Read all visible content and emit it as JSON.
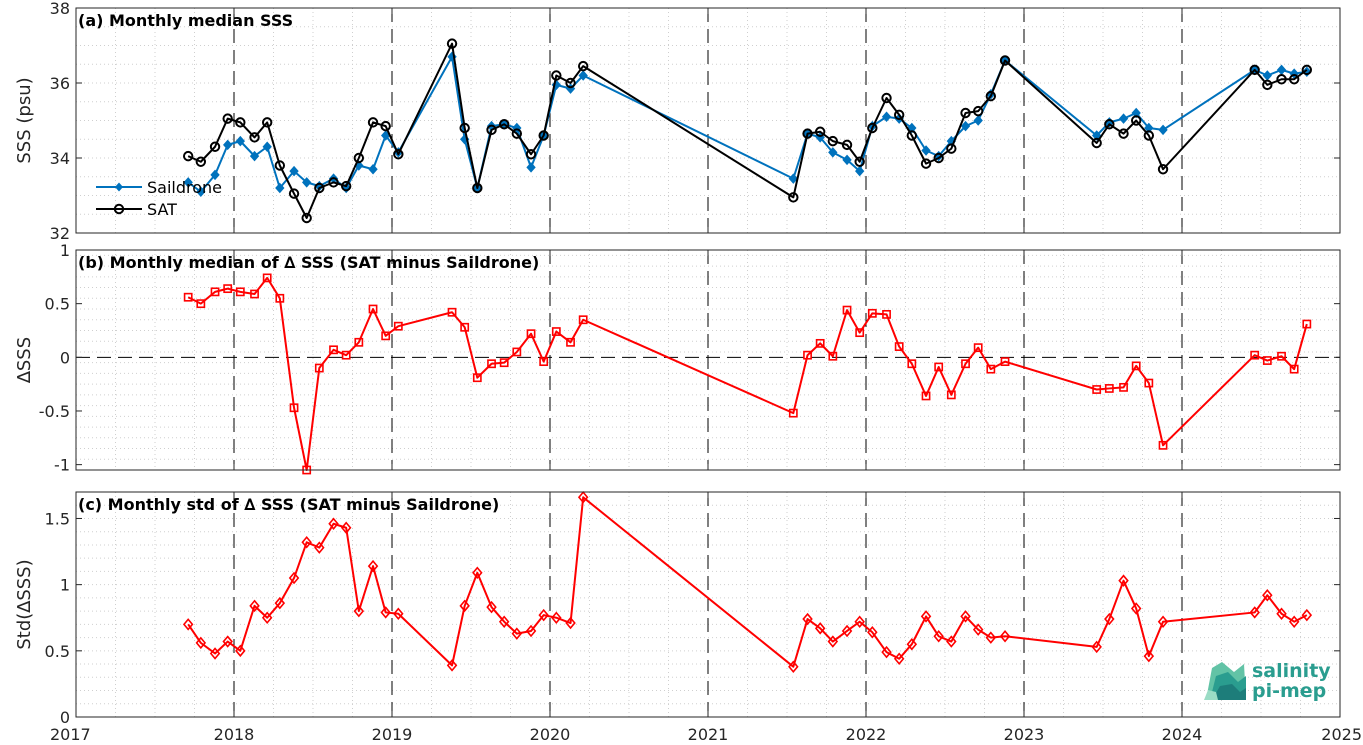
{
  "x_ticks": [
    "2017",
    "2018",
    "2019",
    "2020",
    "2021",
    "2022",
    "2023",
    "2024",
    "2025"
  ],
  "logo": {
    "line1": "salinity",
    "line2": "pi-mep",
    "color": "#2a9d8f"
  },
  "chart_data": [
    {
      "type": "line",
      "title": "(a) Monthly median SSS",
      "ylabel": "SSS (psu)",
      "xlim": [
        2017,
        2025
      ],
      "ylim": [
        32,
        38
      ],
      "yticks": [
        "32",
        "34",
        "36",
        "38"
      ],
      "grid": true,
      "legend": "left",
      "series": [
        {
          "name": "Saildrone",
          "color": "#0072BD",
          "marker": "diamond",
          "points": [
            [
              2017.71,
              33.35
            ],
            [
              2017.79,
              33.1
            ],
            [
              2017.88,
              33.55
            ],
            [
              2017.96,
              34.35
            ],
            [
              2018.04,
              34.45
            ],
            [
              2018.13,
              34.05
            ],
            [
              2018.21,
              34.3
            ],
            [
              2018.29,
              33.2
            ],
            [
              2018.38,
              33.65
            ],
            [
              2018.46,
              33.35
            ],
            [
              2018.54,
              33.25
            ],
            [
              2018.63,
              33.45
            ],
            [
              2018.71,
              33.2
            ],
            [
              2018.79,
              33.8
            ],
            [
              2018.88,
              33.7
            ],
            [
              2018.96,
              34.6
            ],
            [
              2019.04,
              34.15
            ],
            [
              2019.38,
              36.7
            ],
            [
              2019.46,
              34.5
            ],
            [
              2019.54,
              33.2
            ],
            [
              2019.63,
              34.85
            ],
            [
              2019.71,
              34.9
            ],
            [
              2019.79,
              34.8
            ],
            [
              2019.88,
              33.75
            ],
            [
              2019.96,
              34.6
            ],
            [
              2020.04,
              35.95
            ],
            [
              2020.13,
              35.85
            ],
            [
              2020.21,
              36.2
            ],
            [
              2021.54,
              33.45
            ],
            [
              2021.63,
              34.65
            ],
            [
              2021.71,
              34.55
            ],
            [
              2021.79,
              34.15
            ],
            [
              2021.88,
              33.95
            ],
            [
              2021.96,
              33.65
            ],
            [
              2022.04,
              34.85
            ],
            [
              2022.13,
              35.1
            ],
            [
              2022.21,
              35.05
            ],
            [
              2022.29,
              34.8
            ],
            [
              2022.38,
              34.2
            ],
            [
              2022.46,
              34.05
            ],
            [
              2022.54,
              34.45
            ],
            [
              2022.63,
              34.85
            ],
            [
              2022.71,
              35.0
            ],
            [
              2022.79,
              35.7
            ],
            [
              2022.88,
              36.6
            ],
            [
              2023.46,
              34.6
            ],
            [
              2023.54,
              34.95
            ],
            [
              2023.63,
              35.05
            ],
            [
              2023.71,
              35.2
            ],
            [
              2023.79,
              34.8
            ],
            [
              2023.88,
              34.75
            ],
            [
              2024.46,
              36.35
            ],
            [
              2024.54,
              36.2
            ],
            [
              2024.63,
              36.35
            ],
            [
              2024.71,
              36.25
            ],
            [
              2024.79,
              36.3
            ]
          ]
        },
        {
          "name": "SAT",
          "color": "#000000",
          "marker": "circle",
          "points": [
            [
              2017.71,
              34.05
            ],
            [
              2017.79,
              33.9
            ],
            [
              2017.88,
              34.3
            ],
            [
              2017.96,
              35.05
            ],
            [
              2018.04,
              34.95
            ],
            [
              2018.13,
              34.55
            ],
            [
              2018.21,
              34.95
            ],
            [
              2018.29,
              33.8
            ],
            [
              2018.38,
              33.05
            ],
            [
              2018.46,
              32.4
            ],
            [
              2018.54,
              33.2
            ],
            [
              2018.63,
              33.35
            ],
            [
              2018.71,
              33.25
            ],
            [
              2018.79,
              34.0
            ],
            [
              2018.88,
              34.95
            ],
            [
              2018.96,
              34.85
            ],
            [
              2019.04,
              34.1
            ],
            [
              2019.38,
              37.05
            ],
            [
              2019.46,
              34.8
            ],
            [
              2019.54,
              33.2
            ],
            [
              2019.63,
              34.75
            ],
            [
              2019.71,
              34.9
            ],
            [
              2019.79,
              34.65
            ],
            [
              2019.88,
              34.1
            ],
            [
              2019.96,
              34.6
            ],
            [
              2020.04,
              36.2
            ],
            [
              2020.13,
              36.0
            ],
            [
              2020.21,
              36.45
            ],
            [
              2021.54,
              32.95
            ],
            [
              2021.63,
              34.65
            ],
            [
              2021.71,
              34.7
            ],
            [
              2021.79,
              34.45
            ],
            [
              2021.88,
              34.35
            ],
            [
              2021.96,
              33.9
            ],
            [
              2022.04,
              34.8
            ],
            [
              2022.13,
              35.6
            ],
            [
              2022.21,
              35.15
            ],
            [
              2022.29,
              34.6
            ],
            [
              2022.38,
              33.85
            ],
            [
              2022.46,
              34.0
            ],
            [
              2022.54,
              34.25
            ],
            [
              2022.63,
              35.2
            ],
            [
              2022.71,
              35.25
            ],
            [
              2022.79,
              35.65
            ],
            [
              2022.88,
              36.6
            ],
            [
              2023.46,
              34.4
            ],
            [
              2023.54,
              34.9
            ],
            [
              2023.63,
              34.65
            ],
            [
              2023.71,
              35.0
            ],
            [
              2023.79,
              34.6
            ],
            [
              2023.88,
              33.7
            ],
            [
              2024.46,
              36.35
            ],
            [
              2024.54,
              35.95
            ],
            [
              2024.63,
              36.1
            ],
            [
              2024.71,
              36.1
            ],
            [
              2024.79,
              36.35
            ]
          ]
        }
      ]
    },
    {
      "type": "line",
      "title": "(b) Monthly median of ∆ SSS (SAT minus Saildrone)",
      "ylabel": "∆SSS",
      "xlim": [
        2017,
        2025
      ],
      "ylim": [
        -1.05,
        1
      ],
      "yticks": [
        "-1",
        "-0.5",
        "0",
        "0.5",
        "1"
      ],
      "grid": true,
      "series": [
        {
          "color": "#FF0000",
          "marker": "square",
          "points": [
            [
              2017.71,
              0.56
            ],
            [
              2017.79,
              0.5
            ],
            [
              2017.88,
              0.61
            ],
            [
              2017.96,
              0.64
            ],
            [
              2018.04,
              0.61
            ],
            [
              2018.13,
              0.59
            ],
            [
              2018.21,
              0.74
            ],
            [
              2018.29,
              0.55
            ],
            [
              2018.38,
              -0.47
            ],
            [
              2018.46,
              -1.05
            ],
            [
              2018.54,
              -0.1
            ],
            [
              2018.63,
              0.07
            ],
            [
              2018.71,
              0.02
            ],
            [
              2018.79,
              0.14
            ],
            [
              2018.88,
              0.45
            ],
            [
              2018.96,
              0.2
            ],
            [
              2019.04,
              0.29
            ],
            [
              2019.38,
              0.42
            ],
            [
              2019.46,
              0.28
            ],
            [
              2019.54,
              -0.19
            ],
            [
              2019.63,
              -0.06
            ],
            [
              2019.71,
              -0.05
            ],
            [
              2019.79,
              0.05
            ],
            [
              2019.88,
              0.22
            ],
            [
              2019.96,
              -0.04
            ],
            [
              2020.04,
              0.24
            ],
            [
              2020.13,
              0.14
            ],
            [
              2020.21,
              0.35
            ],
            [
              2021.54,
              -0.52
            ],
            [
              2021.63,
              0.02
            ],
            [
              2021.71,
              0.13
            ],
            [
              2021.79,
              0.01
            ],
            [
              2021.88,
              0.44
            ],
            [
              2021.96,
              0.23
            ],
            [
              2022.04,
              0.41
            ],
            [
              2022.13,
              0.4
            ],
            [
              2022.21,
              0.1
            ],
            [
              2022.29,
              -0.06
            ],
            [
              2022.38,
              -0.36
            ],
            [
              2022.46,
              -0.09
            ],
            [
              2022.54,
              -0.35
            ],
            [
              2022.63,
              -0.06
            ],
            [
              2022.71,
              0.09
            ],
            [
              2022.79,
              -0.11
            ],
            [
              2022.88,
              -0.04
            ],
            [
              2023.46,
              -0.3
            ],
            [
              2023.54,
              -0.29
            ],
            [
              2023.63,
              -0.28
            ],
            [
              2023.71,
              -0.08
            ],
            [
              2023.79,
              -0.24
            ],
            [
              2023.88,
              -0.82
            ],
            [
              2024.46,
              0.02
            ],
            [
              2024.54,
              -0.03
            ],
            [
              2024.63,
              0.01
            ],
            [
              2024.71,
              -0.11
            ],
            [
              2024.79,
              0.31
            ]
          ]
        }
      ]
    },
    {
      "type": "line",
      "title": "(c) Monthly std of ∆ SSS (SAT minus Saildrone)",
      "ylabel": "Std(∆SSS)",
      "xlim": [
        2017,
        2025
      ],
      "ylim": [
        0,
        1.7
      ],
      "yticks": [
        "0",
        "0.5",
        "1",
        "1.5"
      ],
      "grid": true,
      "series": [
        {
          "color": "#FF0000",
          "marker": "diamond",
          "points": [
            [
              2017.71,
              0.7
            ],
            [
              2017.79,
              0.56
            ],
            [
              2017.88,
              0.48
            ],
            [
              2017.96,
              0.57
            ],
            [
              2018.04,
              0.5
            ],
            [
              2018.13,
              0.84
            ],
            [
              2018.21,
              0.75
            ],
            [
              2018.29,
              0.86
            ],
            [
              2018.38,
              1.05
            ],
            [
              2018.46,
              1.32
            ],
            [
              2018.54,
              1.28
            ],
            [
              2018.63,
              1.46
            ],
            [
              2018.71,
              1.43
            ],
            [
              2018.79,
              0.8
            ],
            [
              2018.88,
              1.14
            ],
            [
              2018.96,
              0.79
            ],
            [
              2019.04,
              0.78
            ],
            [
              2019.38,
              0.39
            ],
            [
              2019.46,
              0.84
            ],
            [
              2019.54,
              1.09
            ],
            [
              2019.63,
              0.83
            ],
            [
              2019.71,
              0.72
            ],
            [
              2019.79,
              0.63
            ],
            [
              2019.88,
              0.65
            ],
            [
              2019.96,
              0.77
            ],
            [
              2020.04,
              0.75
            ],
            [
              2020.13,
              0.71
            ],
            [
              2020.21,
              1.66
            ],
            [
              2021.54,
              0.38
            ],
            [
              2021.63,
              0.74
            ],
            [
              2021.71,
              0.67
            ],
            [
              2021.79,
              0.57
            ],
            [
              2021.88,
              0.65
            ],
            [
              2021.96,
              0.72
            ],
            [
              2022.04,
              0.64
            ],
            [
              2022.13,
              0.49
            ],
            [
              2022.21,
              0.44
            ],
            [
              2022.29,
              0.55
            ],
            [
              2022.38,
              0.76
            ],
            [
              2022.46,
              0.61
            ],
            [
              2022.54,
              0.57
            ],
            [
              2022.63,
              0.76
            ],
            [
              2022.71,
              0.66
            ],
            [
              2022.79,
              0.6
            ],
            [
              2022.88,
              0.61
            ],
            [
              2023.46,
              0.53
            ],
            [
              2023.54,
              0.74
            ],
            [
              2023.63,
              1.03
            ],
            [
              2023.71,
              0.82
            ],
            [
              2023.79,
              0.46
            ],
            [
              2023.88,
              0.72
            ],
            [
              2024.46,
              0.79
            ],
            [
              2024.54,
              0.92
            ],
            [
              2024.63,
              0.78
            ],
            [
              2024.71,
              0.72
            ],
            [
              2024.79,
              0.77
            ]
          ]
        }
      ]
    }
  ]
}
